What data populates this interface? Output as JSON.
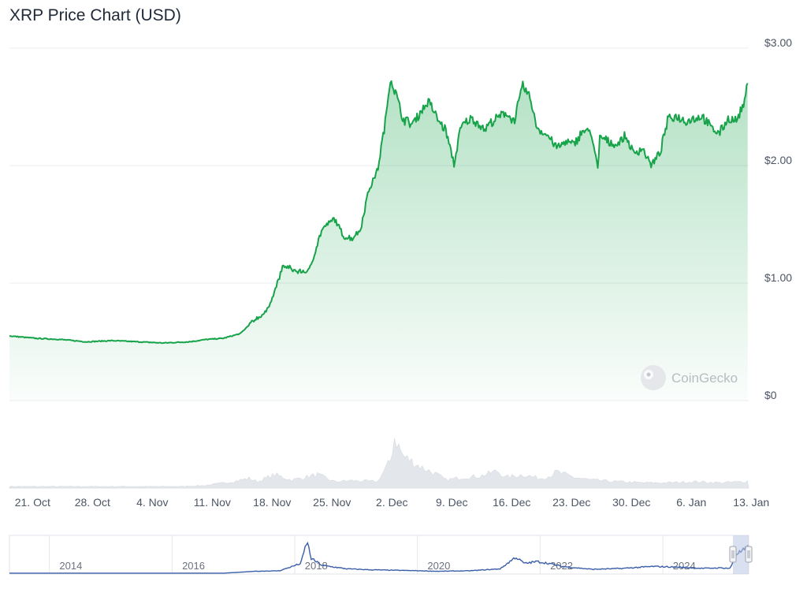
{
  "chart_title": "XRP Price Chart (USD)",
  "watermark": "CoinGecko",
  "colors": {
    "line": "#17a34a",
    "volume": "#e3e6eb",
    "navigator": "#3b5ea8",
    "grid": "#e9ecef"
  },
  "chart_data": {
    "type": "line",
    "title": "XRP Price Chart (USD)",
    "y_ticks": [
      "$0",
      "$1.00",
      "$2.00",
      "$3.00"
    ],
    "ylim": [
      0,
      3
    ],
    "x_ticks": [
      "21. Oct",
      "28. Oct",
      "4. Nov",
      "11. Nov",
      "18. Nov",
      "25. Nov",
      "2. Dec",
      "9. Dec",
      "16. Dec",
      "23. Dec",
      "30. Dec",
      "6. Jan",
      "13. Jan"
    ],
    "price_series": {
      "x_day": [
        0,
        3,
        6,
        9,
        12,
        15,
        18,
        21,
        23,
        25,
        27,
        28.5,
        30,
        31,
        32,
        33.5,
        35,
        36.5,
        38,
        39,
        40,
        41,
        42,
        43,
        44,
        44.5,
        45,
        46,
        47,
        48,
        49,
        50,
        51,
        52,
        52.5,
        53,
        54,
        55,
        55.5,
        56,
        57,
        58,
        59,
        60,
        61,
        61.5,
        62,
        63,
        64,
        65,
        66,
        67,
        68,
        68.8,
        69,
        70,
        71,
        72,
        73,
        74,
        75,
        76,
        77,
        78,
        79,
        80,
        81,
        82,
        83,
        84,
        85,
        86,
        86.2,
        86.4
      ],
      "price": [
        0.55,
        0.53,
        0.52,
        0.5,
        0.51,
        0.5,
        0.49,
        0.5,
        0.52,
        0.53,
        0.57,
        0.68,
        0.75,
        0.93,
        1.15,
        1.1,
        1.1,
        1.45,
        1.55,
        1.4,
        1.38,
        1.45,
        1.8,
        1.95,
        2.4,
        2.75,
        2.65,
        2.4,
        2.35,
        2.45,
        2.55,
        2.4,
        2.3,
        2.0,
        2.25,
        2.35,
        2.4,
        2.35,
        2.3,
        2.35,
        2.4,
        2.45,
        2.38,
        2.68,
        2.55,
        2.35,
        2.3,
        2.25,
        2.15,
        2.2,
        2.18,
        2.3,
        2.28,
        1.95,
        2.25,
        2.2,
        2.18,
        2.25,
        2.1,
        2.15,
        2.0,
        2.1,
        2.4,
        2.42,
        2.38,
        2.4,
        2.42,
        2.32,
        2.28,
        2.4,
        2.38,
        2.55,
        2.68,
        2.83
      ]
    },
    "volume_series": {
      "x_day": [
        0,
        20,
        23,
        26,
        28,
        29,
        31,
        33,
        36,
        38,
        40,
        43,
        44.5,
        45,
        46,
        48,
        50,
        51,
        53,
        55,
        57,
        58,
        60,
        62,
        63,
        64,
        66,
        68,
        71,
        74,
        77,
        80,
        83,
        86,
        86.4
      ],
      "relative": [
        0.03,
        0.03,
        0.05,
        0.12,
        0.18,
        0.12,
        0.25,
        0.15,
        0.25,
        0.12,
        0.14,
        0.12,
        0.5,
        0.95,
        0.6,
        0.4,
        0.25,
        0.15,
        0.2,
        0.22,
        0.32,
        0.2,
        0.25,
        0.18,
        0.22,
        0.3,
        0.2,
        0.15,
        0.12,
        0.1,
        0.1,
        0.12,
        0.1,
        0.12,
        0.14
      ]
    },
    "navigator": {
      "labels": [
        "2014",
        "2016",
        "2018",
        "2020",
        "2022",
        "2024"
      ],
      "x_year": [
        2013.0,
        2016.5,
        2017.0,
        2017.4,
        2017.75,
        2017.85,
        2017.92,
        2018.1,
        2018.5,
        2018.9,
        2019.5,
        2020.0,
        2020.5,
        2021.0,
        2021.25,
        2021.4,
        2021.6,
        2021.8,
        2022.0,
        2022.5,
        2023.0,
        2023.5,
        2024.0,
        2024.3,
        2024.6,
        2024.75,
        2024.85,
        2024.95,
        2025.05
      ],
      "price": [
        0.005,
        0.007,
        0.2,
        0.25,
        1.0,
        3.3,
        1.5,
        0.8,
        0.45,
        0.35,
        0.28,
        0.2,
        0.25,
        0.45,
        1.65,
        1.0,
        1.2,
        1.0,
        0.7,
        0.4,
        0.5,
        0.7,
        0.6,
        0.5,
        0.55,
        0.5,
        2.0,
        2.3,
        2.7
      ]
    },
    "grid": true,
    "legend": "none"
  }
}
